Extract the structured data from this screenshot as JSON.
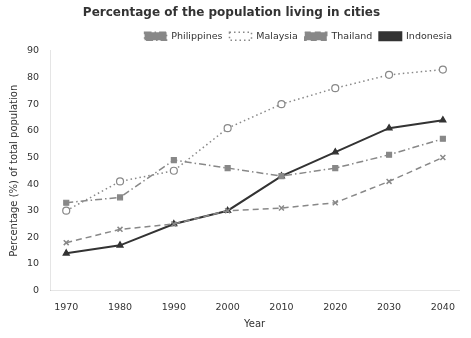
{
  "chart_data": {
    "type": "line",
    "title": "Percentage of the population living in cities",
    "x_label": "Year",
    "y_label": "Percentage (%) of total population",
    "x": [
      1970,
      1980,
      1990,
      2000,
      2010,
      2020,
      2030,
      2040
    ],
    "series": [
      {
        "name": "Philippines",
        "color": "#888888",
        "marker": "square",
        "line_style": "dashdot",
        "values": [
          33,
          35,
          49,
          46,
          43,
          46,
          51,
          57
        ]
      },
      {
        "name": "Malaysia",
        "color": "#888888",
        "marker": "open circle",
        "line_style": "dotted",
        "values": [
          30,
          41,
          45,
          61,
          70,
          76,
          81,
          83
        ]
      },
      {
        "name": "Thailand",
        "color": "#888888",
        "marker": "x",
        "line_style": "dashed",
        "values": [
          18,
          23,
          25,
          30,
          31,
          33,
          41,
          50
        ]
      },
      {
        "name": "Indonesia",
        "color": "#333333",
        "marker": "triangle",
        "line_style": "solid",
        "values": [
          14,
          17,
          25,
          30,
          43,
          52,
          61,
          64
        ]
      }
    ],
    "xlim": [
      1967,
      2043
    ],
    "xticks": [
      1970,
      1980,
      1990,
      2000,
      2010,
      2020,
      2030,
      2040
    ],
    "ylim": [
      0,
      90
    ],
    "yticks": [
      0,
      10,
      20,
      30,
      40,
      50,
      60,
      70,
      80,
      90
    ],
    "grid": false,
    "legend": "upper right"
  }
}
